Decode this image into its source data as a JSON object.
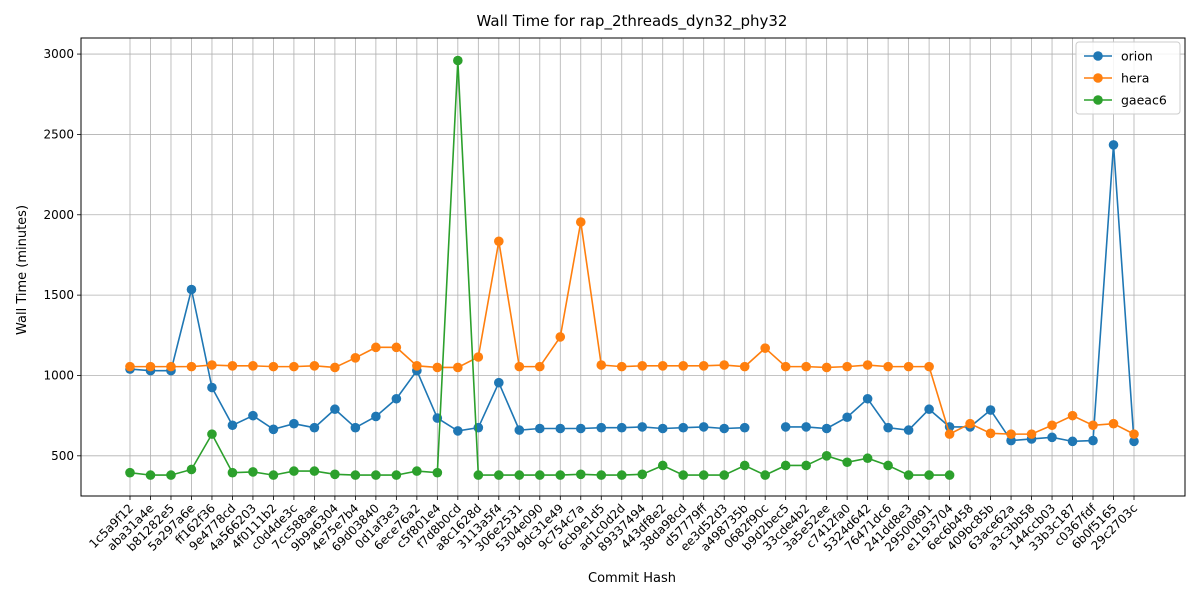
{
  "chart_data": {
    "type": "line",
    "title": "Wall Time for rap_2threads_dyn32_phy32",
    "xlabel": "Commit Hash",
    "ylabel": "Wall Time (minutes)",
    "ylim": [
      250,
      3100
    ],
    "yticks": [
      500,
      1000,
      1500,
      2000,
      2500,
      3000
    ],
    "grid": true,
    "legend_position": "top-right",
    "categories": [
      "1c5a9f12",
      "aba31a4e",
      "b81282e5",
      "5a297a6e",
      "ff162f36",
      "9e4778cd",
      "4a566203",
      "4f0111b2",
      "c0d4de3c",
      "7cc588ae",
      "9b9a6304",
      "4e75e7b4",
      "69d03840",
      "0d1af3e3",
      "6ece76a2",
      "c5f801e4",
      "f7d8b0cd",
      "a8c1628d",
      "3113a5f4",
      "306e2531",
      "5304e090",
      "9dc31e49",
      "9c754c7a",
      "6cb9e1d5",
      "ad1c0d2d",
      "89337494",
      "443df8e2",
      "38da98cd",
      "d57779ff",
      "ee3d52d3",
      "a498735b",
      "0682f90c",
      "b9d2bec5",
      "33cde4b2",
      "3a5e52ee",
      "c7412fa0",
      "5324d642",
      "76471dc6",
      "241dd8e3",
      "29500891",
      "e1193704",
      "6ec6b458",
      "409bc85b",
      "63ace62a",
      "a3c3bb58",
      "144ccb03",
      "33b3c187",
      "c0367fdf",
      "6b0f5165",
      "29c2703c"
    ],
    "series": [
      {
        "name": "orion",
        "color": "#1f77b4",
        "values": [
          1040,
          1030,
          1030,
          1535,
          925,
          690,
          750,
          665,
          700,
          675,
          790,
          675,
          745,
          855,
          1030,
          735,
          655,
          675,
          955,
          660,
          670,
          670,
          670,
          675,
          675,
          680,
          670,
          675,
          680,
          670,
          675,
          null,
          680,
          680,
          670,
          740,
          855,
          675,
          660,
          790,
          680,
          680,
          785,
          595,
          605,
          615,
          590,
          595,
          2435,
          590
        ]
      },
      {
        "name": "hera",
        "color": "#ff7f0e",
        "values": [
          1055,
          1055,
          1055,
          1055,
          1065,
          1060,
          1060,
          1055,
          1055,
          1060,
          1050,
          1110,
          1175,
          1175,
          1060,
          1050,
          1050,
          1115,
          1835,
          1055,
          1055,
          1240,
          1955,
          1065,
          1055,
          1060,
          1060,
          1060,
          1060,
          1065,
          1055,
          1170,
          1055,
          1055,
          1050,
          1055,
          1065,
          1055,
          1055,
          1055,
          635,
          700,
          640,
          635,
          635,
          690,
          750,
          690,
          700,
          635
        ]
      },
      {
        "name": "gaeac6",
        "color": "#2ca02c",
        "values": [
          395,
          380,
          380,
          415,
          635,
          395,
          400,
          380,
          405,
          405,
          385,
          380,
          380,
          380,
          405,
          395,
          2960,
          380,
          380,
          380,
          380,
          380,
          385,
          380,
          380,
          385,
          440,
          380,
          380,
          380,
          440,
          380,
          440,
          440,
          500,
          460,
          485,
          440,
          380,
          380,
          380,
          null,
          null,
          null,
          null,
          null,
          null,
          null,
          null,
          null
        ]
      }
    ]
  }
}
